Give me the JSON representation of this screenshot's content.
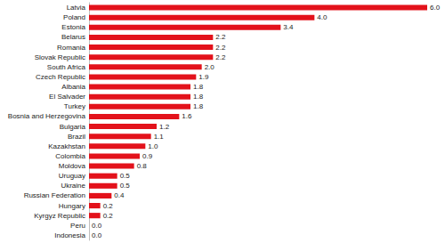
{
  "chart_data": {
    "type": "bar",
    "orientation": "horizontal",
    "categories": [
      "Latvia",
      "Poland",
      "Estonia",
      "Belarus",
      "Romania",
      "Slovak Republic",
      "South Africa",
      "Czech Republic",
      "Albania",
      "El Salvader",
      "Turkey",
      "Bosnia and Herzegovina",
      "Bulgaria",
      "Brazil",
      "Kazakhstan",
      "Colombia",
      "Moldova",
      "Uruguay",
      "Ukraine",
      "Russian Federation",
      "Hungary",
      "Kyrgyz Republic",
      "Peru",
      "Indonesia"
    ],
    "values": [
      6.0,
      4.0,
      3.4,
      2.2,
      2.2,
      2.2,
      2.0,
      1.9,
      1.8,
      1.8,
      1.8,
      1.6,
      1.2,
      1.1,
      1.0,
      0.9,
      0.8,
      0.5,
      0.5,
      0.4,
      0.2,
      0.2,
      0.0,
      0.0
    ],
    "value_labels": [
      "6.0",
      "4.0",
      "3.4",
      "2.2",
      "2.2",
      "2.2",
      "2.0",
      "1.9",
      "1.8",
      "1.8",
      "1.8",
      "1.6",
      "1.2",
      "1.1",
      "1.0",
      "0.9",
      "0.8",
      "0.5",
      "0.5",
      "0.4",
      "0.2",
      "0.2",
      "0.0",
      "0.0"
    ],
    "color": "#e3121b",
    "xlim": [
      0,
      6
    ],
    "data_labels": true,
    "tick_labels": "y",
    "grid": false
  }
}
